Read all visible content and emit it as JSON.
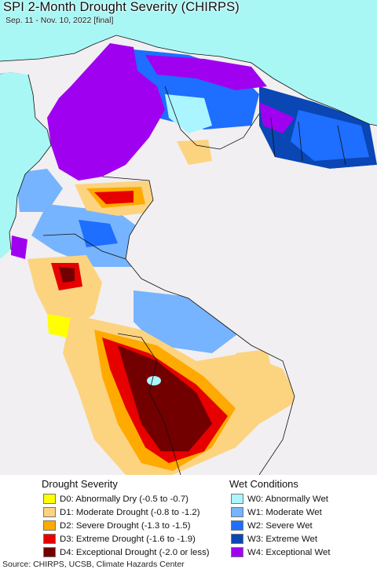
{
  "header": {
    "title": "SPI 2-Month Drought Severity (CHIRPS)",
    "subtitle": "Sep. 11 - Nov. 10, 2022 [final]"
  },
  "map": {
    "ocean_color": "#a8f7f5",
    "land_color": "#f1eff1",
    "border_color": "#111111"
  },
  "legend": {
    "drought": {
      "heading": "Drought Severity",
      "items": [
        {
          "label": "D0: Abnormally Dry (-0.5 to -0.7)",
          "color": "#ffff00"
        },
        {
          "label": "D1: Moderate Drought (-0.8 to -1.2)",
          "color": "#fcd37f"
        },
        {
          "label": "D2: Severe Drought (-1.3 to -1.5)",
          "color": "#ffaa00"
        },
        {
          "label": "D3: Extreme Drought (-1.6 to -1.9)",
          "color": "#e60000"
        },
        {
          "label": "D4: Exceptional Drought (-2.0 or less)",
          "color": "#730000"
        }
      ]
    },
    "wet": {
      "heading": "Wet Conditions",
      "items": [
        {
          "label": "W0: Abnormally Wet",
          "color": "#aaf5ff"
        },
        {
          "label": "W1: Moderate Wet",
          "color": "#76b4ff"
        },
        {
          "label": "W2: Severe Wet",
          "color": "#1e6eff"
        },
        {
          "label": "W3: Extreme Wet",
          "color": "#0a46b4"
        },
        {
          "label": "W4: Exceptional Wet",
          "color": "#a000f0"
        }
      ]
    }
  },
  "footer": {
    "source": "Source: CHIRPS, UCSB, Climate Hazards Center"
  }
}
